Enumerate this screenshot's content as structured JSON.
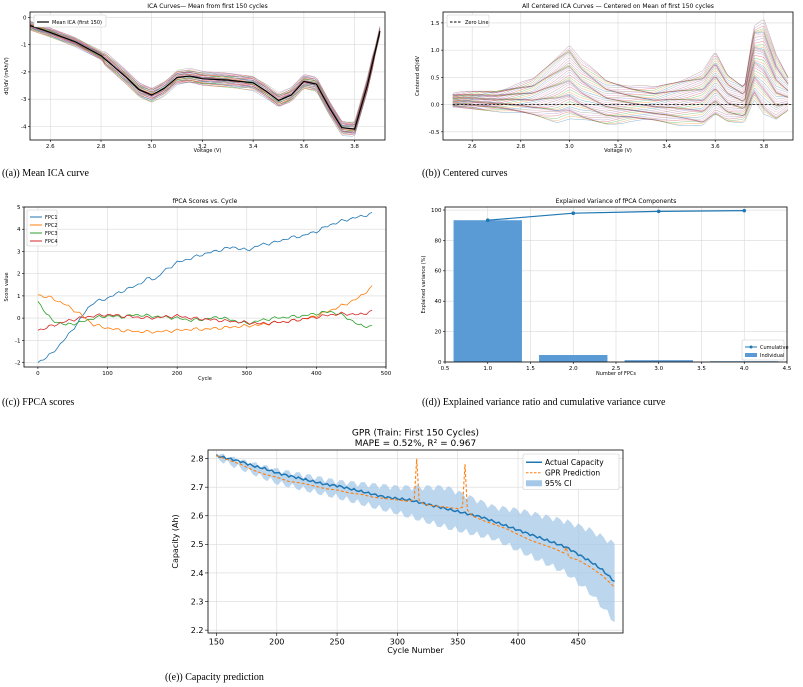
{
  "captions": {
    "a": "((a)) Mean ICA curve",
    "b": "((b)) Centered curves",
    "c": "((c)) FPCA scores",
    "d": "((d)) Explained variance ratio and cumulative variance curve",
    "e": "((e)) Capacity prediction"
  },
  "chart_data": [
    {
      "id": "a",
      "type": "line",
      "title": "ICA Curves— Mean from first 150 cycles",
      "xlabel": "Voltage (V)",
      "ylabel": "dQ/dV (mAh/V)",
      "xlim": [
        2.52,
        3.92
      ],
      "ylim": [
        -4.5,
        0.2
      ],
      "xticks": [
        "2.6",
        "2.8",
        "3.0",
        "3.2",
        "3.4",
        "3.6",
        "3.8"
      ],
      "xtick_values": [
        2.6,
        2.8,
        3.0,
        3.2,
        3.4,
        3.6,
        3.8
      ],
      "yticks": [
        "-4",
        "-3",
        "-2",
        "-1",
        "0"
      ],
      "ytick_values": [
        -4,
        -3,
        -2,
        -1,
        0
      ],
      "grid": true,
      "legend": "top-left",
      "series": [
        {
          "name": "Mean ICA (first 150)",
          "color": "#000000",
          "x": [
            2.52,
            2.6,
            2.7,
            2.8,
            2.9,
            2.95,
            3.0,
            3.05,
            3.1,
            3.15,
            3.2,
            3.3,
            3.4,
            3.45,
            3.5,
            3.55,
            3.6,
            3.65,
            3.7,
            3.75,
            3.8,
            3.85,
            3.9
          ],
          "y": [
            -0.3,
            -0.55,
            -0.9,
            -1.4,
            -2.2,
            -2.65,
            -2.85,
            -2.6,
            -2.2,
            -2.15,
            -2.25,
            -2.3,
            -2.4,
            -2.7,
            -3.05,
            -2.85,
            -2.35,
            -2.45,
            -3.3,
            -4.05,
            -4.1,
            -2.5,
            -0.5
          ]
        }
      ],
      "band_colors": [
        "#1f77b4",
        "#ff7f0e",
        "#2ca02c",
        "#d62728",
        "#9467bd",
        "#8c564b",
        "#e377c2",
        "#7f7f7f"
      ]
    },
    {
      "id": "b",
      "type": "line",
      "title": "All Centered ICA Curves — Centered on Mean of first 150 cycles",
      "xlabel": "Voltage (V)",
      "ylabel": "Centered dQ/dV",
      "xlim": [
        2.48,
        3.92
      ],
      "ylim": [
        -0.65,
        1.7
      ],
      "xticks": [
        "2.6",
        "2.8",
        "3.0",
        "3.2",
        "3.4",
        "3.6",
        "3.8"
      ],
      "xtick_values": [
        2.6,
        2.8,
        3.0,
        3.2,
        3.4,
        3.6,
        3.8
      ],
      "yticks": [
        "-0.5",
        "0.0",
        "0.5",
        "1.0",
        "1.5"
      ],
      "ytick_values": [
        -0.5,
        0.0,
        0.5,
        1.0,
        1.5
      ],
      "grid": true,
      "legend": "top-left",
      "series": [
        {
          "name": "Zero Line",
          "color": "#000000",
          "dashed": true,
          "x": [
            2.52,
            3.92
          ],
          "y": [
            0,
            0
          ]
        }
      ],
      "envelope": {
        "x": [
          2.52,
          2.7,
          2.85,
          2.95,
          3.0,
          3.05,
          3.15,
          3.25,
          3.35,
          3.45,
          3.55,
          3.6,
          3.65,
          3.72,
          3.76,
          3.8,
          3.85,
          3.9
        ],
        "upper": [
          0.2,
          0.25,
          0.45,
          0.9,
          1.1,
          0.8,
          0.45,
          0.35,
          0.3,
          0.45,
          0.6,
          0.95,
          0.55,
          0.35,
          1.45,
          1.55,
          0.9,
          0.5
        ],
        "lower": [
          -0.05,
          -0.1,
          -0.2,
          -0.3,
          -0.25,
          -0.3,
          -0.35,
          -0.3,
          -0.3,
          -0.35,
          -0.4,
          -0.2,
          -0.3,
          -0.3,
          0.1,
          -0.2,
          -0.3,
          -0.1
        ]
      },
      "band_colors": [
        "#1f77b4",
        "#ff7f0e",
        "#2ca02c",
        "#d62728",
        "#9467bd",
        "#8c564b",
        "#e377c2",
        "#7f7f7f"
      ]
    },
    {
      "id": "c",
      "type": "line",
      "title": "fPCA Scores vs. Cycle",
      "xlabel": "Cycle",
      "ylabel": "Score value",
      "xlim": [
        -20,
        500
      ],
      "ylim": [
        -2.2,
        5
      ],
      "xticks": [
        "0",
        "100",
        "200",
        "300",
        "400",
        "500"
      ],
      "xtick_values": [
        0,
        100,
        200,
        300,
        400,
        500
      ],
      "yticks": [
        "-2",
        "-1",
        "0",
        "1",
        "2",
        "3",
        "4",
        "5"
      ],
      "ytick_values": [
        -2,
        -1,
        0,
        1,
        2,
        3,
        4,
        5
      ],
      "grid": true,
      "legend": "top-left",
      "series": [
        {
          "name": "FPC1",
          "color": "#1f77b4",
          "x": [
            0,
            20,
            40,
            60,
            70,
            80,
            100,
            120,
            140,
            160,
            170,
            180,
            200,
            220,
            240,
            260,
            280,
            300,
            320,
            340,
            360,
            380,
            400,
            420,
            440,
            460,
            480
          ],
          "y": [
            -2.0,
            -1.6,
            -0.9,
            -0.1,
            0.4,
            0.7,
            0.9,
            1.2,
            1.45,
            1.8,
            1.75,
            2.1,
            2.5,
            2.7,
            2.9,
            3.05,
            3.2,
            3.05,
            3.3,
            3.4,
            3.6,
            3.7,
            3.9,
            4.2,
            4.4,
            4.55,
            4.7
          ]
        },
        {
          "name": "FPC2",
          "color": "#ff7f0e",
          "x": [
            0,
            20,
            40,
            60,
            80,
            100,
            120,
            140,
            160,
            180,
            200,
            220,
            240,
            260,
            280,
            300,
            320,
            340,
            360,
            380,
            400,
            420,
            440,
            460,
            480
          ],
          "y": [
            1.05,
            0.9,
            0.6,
            0.2,
            -0.3,
            -0.45,
            -0.55,
            -0.6,
            -0.62,
            -0.6,
            -0.55,
            -0.5,
            -0.5,
            -0.45,
            -0.4,
            -0.35,
            -0.3,
            -0.2,
            -0.15,
            -0.05,
            0.1,
            0.35,
            0.6,
            0.9,
            1.4
          ]
        },
        {
          "name": "FPC3",
          "color": "#2ca02c",
          "x": [
            0,
            10,
            20,
            40,
            60,
            80,
            100,
            120,
            140,
            160,
            180,
            200,
            220,
            240,
            260,
            280,
            300,
            320,
            340,
            360,
            380,
            400,
            420,
            440,
            460,
            480
          ],
          "y": [
            0.75,
            0.3,
            -0.1,
            -0.3,
            -0.2,
            0.0,
            0.1,
            0.05,
            0.15,
            0.1,
            0.05,
            0.0,
            -0.1,
            -0.05,
            0.05,
            -0.1,
            -0.25,
            -0.1,
            0.0,
            0.05,
            0.1,
            0.2,
            0.3,
            0.1,
            -0.3,
            -0.4
          ]
        },
        {
          "name": "FPC4",
          "color": "#d62728",
          "x": [
            0,
            20,
            40,
            60,
            80,
            100,
            120,
            140,
            160,
            180,
            200,
            220,
            240,
            260,
            280,
            300,
            320,
            340,
            360,
            380,
            400,
            420,
            440,
            460,
            480
          ],
          "y": [
            -0.55,
            -0.35,
            -0.15,
            0.0,
            0.1,
            0.15,
            0.1,
            0.05,
            0.0,
            0.05,
            0.1,
            0.0,
            -0.05,
            -0.1,
            -0.15,
            -0.2,
            -0.25,
            -0.2,
            -0.15,
            -0.05,
            0.05,
            0.15,
            0.2,
            0.15,
            0.3
          ]
        }
      ]
    },
    {
      "id": "d",
      "type": "bar",
      "title": "Explained Variance of fPCA Components",
      "xlabel": "Number of FPCs",
      "ylabel": "Explained variance (%)",
      "xlim": [
        0.5,
        4.5
      ],
      "ylim": [
        0,
        102
      ],
      "xticks": [
        "0.5",
        "1.0",
        "1.5",
        "2.0",
        "2.5",
        "3.0",
        "3.5",
        "4.0",
        "4.5"
      ],
      "xtick_values": [
        0.5,
        1.0,
        1.5,
        2.0,
        2.5,
        3.0,
        3.5,
        4.0,
        4.5
      ],
      "yticks": [
        "0",
        "20",
        "40",
        "60",
        "80",
        "100"
      ],
      "ytick_values": [
        0,
        20,
        40,
        60,
        80,
        100
      ],
      "grid": true,
      "legend": "bottom-right",
      "categories": [
        1,
        2,
        3,
        4
      ],
      "series": [
        {
          "name": "Individual",
          "type": "bar",
          "color": "#5b9bd5",
          "values": [
            93.3,
            4.6,
            1.2,
            0.5
          ]
        },
        {
          "name": "Cumulative",
          "type": "line",
          "color": "#1f77b4",
          "values": [
            93.3,
            97.9,
            99.1,
            99.6
          ]
        }
      ]
    },
    {
      "id": "e",
      "type": "line",
      "title": "GPR (Train: First 150 Cycles)",
      "subtitle": "MAPE = 0.52%, R² = 0.967",
      "xlabel": "Cycle Number",
      "ylabel": "Capacity (Ah)",
      "xlim": [
        143,
        487
      ],
      "ylim": [
        2.19,
        2.83
      ],
      "xticks": [
        "150",
        "200",
        "250",
        "300",
        "350",
        "400",
        "450"
      ],
      "xtick_values": [
        150,
        200,
        250,
        300,
        350,
        400,
        450
      ],
      "yticks": [
        "2.2",
        "2.3",
        "2.4",
        "2.5",
        "2.6",
        "2.7",
        "2.8"
      ],
      "ytick_values": [
        2.2,
        2.3,
        2.4,
        2.5,
        2.6,
        2.7,
        2.8
      ],
      "grid": true,
      "legend": "top-right",
      "series": [
        {
          "name": "Actual Capacity",
          "color": "#1f77b4",
          "x": [
            150,
            160,
            170,
            180,
            190,
            200,
            210,
            220,
            230,
            240,
            250,
            260,
            270,
            280,
            290,
            300,
            310,
            320,
            330,
            340,
            350,
            360,
            370,
            380,
            390,
            400,
            410,
            420,
            430,
            440,
            450,
            460,
            470,
            480
          ],
          "y": [
            2.81,
            2.8,
            2.79,
            2.775,
            2.765,
            2.75,
            2.74,
            2.73,
            2.72,
            2.71,
            2.705,
            2.695,
            2.685,
            2.675,
            2.665,
            2.66,
            2.655,
            2.645,
            2.635,
            2.625,
            2.615,
            2.605,
            2.595,
            2.58,
            2.565,
            2.55,
            2.535,
            2.52,
            2.505,
            2.49,
            2.465,
            2.44,
            2.41,
            2.37
          ]
        },
        {
          "name": "GPR Prediction",
          "color": "#ff7f0e",
          "dashed": true,
          "x": [
            150,
            160,
            170,
            180,
            190,
            200,
            210,
            220,
            230,
            240,
            250,
            260,
            270,
            280,
            290,
            300,
            310,
            314,
            316,
            318,
            322,
            330,
            340,
            350,
            354,
            356,
            358,
            362,
            370,
            380,
            390,
            400,
            410,
            420,
            430,
            438,
            440,
            442,
            450,
            460,
            470,
            480
          ],
          "y": [
            2.81,
            2.795,
            2.78,
            2.76,
            2.745,
            2.735,
            2.72,
            2.715,
            2.705,
            2.695,
            2.69,
            2.68,
            2.675,
            2.665,
            2.66,
            2.655,
            2.65,
            2.66,
            2.8,
            2.655,
            2.64,
            2.635,
            2.63,
            2.625,
            2.63,
            2.78,
            2.62,
            2.6,
            2.585,
            2.57,
            2.555,
            2.535,
            2.515,
            2.5,
            2.485,
            2.47,
            2.49,
            2.455,
            2.445,
            2.42,
            2.39,
            2.35
          ]
        },
        {
          "name": "95% CI",
          "type": "band",
          "color": "#a6c8e8",
          "x": [
            150,
            200,
            250,
            300,
            340,
            380,
            400,
            420,
            440,
            460,
            480
          ],
          "upper": [
            2.815,
            2.76,
            2.72,
            2.7,
            2.7,
            2.63,
            2.62,
            2.6,
            2.58,
            2.55,
            2.5
          ],
          "lower": [
            2.8,
            2.715,
            2.665,
            2.61,
            2.56,
            2.52,
            2.48,
            2.44,
            2.4,
            2.33,
            2.23
          ]
        }
      ]
    }
  ]
}
